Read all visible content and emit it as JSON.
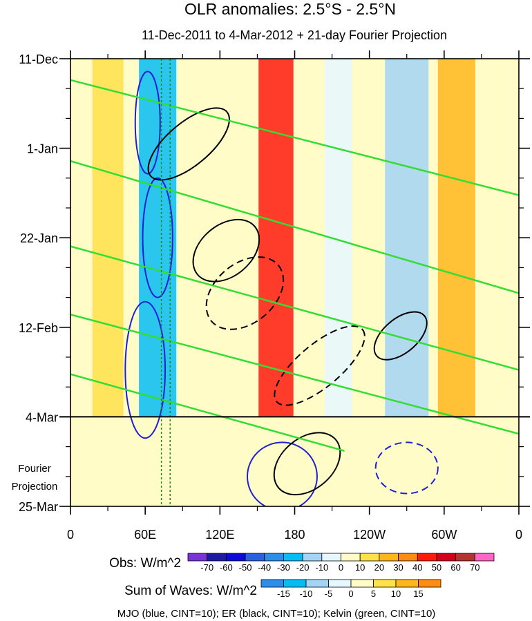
{
  "chart_data": {
    "type": "heatmap",
    "title": "OLR anomalies: 2.5°S - 2.5°N",
    "subtitle": "11-Dec-2011 to 4-Mar-2012 + 21-day Fourier Projection",
    "y_ticks": [
      "11-Dec",
      "1-Jan",
      "22-Jan",
      "12-Feb",
      "4-Mar",
      "25-Mar"
    ],
    "y_tick_days": [
      0,
      21,
      42,
      63,
      84,
      105
    ],
    "x_ticks": [
      "0",
      "60E",
      "120E",
      "180",
      "120W",
      "60W",
      "0"
    ],
    "x_tick_lons": [
      0,
      60,
      120,
      180,
      240,
      300,
      360
    ],
    "projection_label": [
      "Fourier",
      "Projection"
    ],
    "projection_start_day": 84,
    "reference_lines_lon": [
      73,
      80
    ],
    "obs_colorbar": {
      "label": "Obs: W/m^2",
      "levels": [
        "-70",
        "-60",
        "-50",
        "-40",
        "-30",
        "-20",
        "-10",
        "0",
        "10",
        "20",
        "30",
        "40",
        "50",
        "60",
        "70"
      ],
      "colors": [
        "#7a33d9",
        "#1d1aa6",
        "#0a0ad9",
        "#2b60e0",
        "#2e8de8",
        "#05bcf5",
        "#a3d3f5",
        "#e6f7ff",
        "#fffcc8",
        "#ffe14a",
        "#ffb61c",
        "#ff8c12",
        "#ff1a0d",
        "#d3001a",
        "#b3332e",
        "#ff66c8"
      ]
    },
    "waves_colorbar": {
      "label": "Sum of Waves: W/m^2",
      "levels": [
        "-15",
        "-10",
        "-5",
        "0",
        "5",
        "10",
        "15"
      ],
      "colors": [
        "#2e8de8",
        "#05bcf5",
        "#a3d3f5",
        "#e6f7ff",
        "#fffcc8",
        "#ffe14a",
        "#ffb61c",
        "#ff8c12"
      ]
    },
    "caption": "MJO (blue, CINT=10); ER (black, CINT=10); Kelvin (green, CINT=10)",
    "anomaly_bands": [
      {
        "lon": 165,
        "width": 28,
        "value": 45
      },
      {
        "lon": 215,
        "width": 22,
        "value": -8
      },
      {
        "lon": 70,
        "width": 30,
        "value": -30
      },
      {
        "lon": 30,
        "width": 25,
        "value": 15
      },
      {
        "lon": 310,
        "width": 30,
        "value": 25
      },
      {
        "lon": 270,
        "width": 35,
        "value": -20
      }
    ],
    "mjo_contours": [
      {
        "lon": 62,
        "day": 15,
        "rx": 10,
        "ry": 12,
        "sign": "negative"
      },
      {
        "lon": 70,
        "day": 42,
        "rx": 12,
        "ry": 14,
        "sign": "negative"
      },
      {
        "lon": 60,
        "day": 73,
        "rx": 16,
        "ry": 16,
        "sign": "negative"
      },
      {
        "lon": 170,
        "day": 98,
        "rx": 28,
        "ry": 8,
        "sign": "negative"
      },
      {
        "lon": 270,
        "day": 96,
        "rx": 25,
        "ry": 6,
        "sign": "positive"
      }
    ],
    "er_contours": [
      {
        "lon": 95,
        "day": 20,
        "rx": 40,
        "ry": 5,
        "sign": "negative"
      },
      {
        "lon": 125,
        "day": 45,
        "rx": 30,
        "ry": 6,
        "sign": "negative"
      },
      {
        "lon": 140,
        "day": 55,
        "rx": 35,
        "ry": 7,
        "sign": "positive"
      },
      {
        "lon": 200,
        "day": 72,
        "rx": 45,
        "ry": 5,
        "sign": "positive"
      },
      {
        "lon": 265,
        "day": 65,
        "rx": 25,
        "ry": 4,
        "sign": "negative"
      },
      {
        "lon": 190,
        "day": 95,
        "rx": 30,
        "ry": 6,
        "sign": "negative"
      }
    ],
    "kelvin_lines": [
      {
        "lon0": 0,
        "day0": 5,
        "lon1": 360,
        "day1": 32
      },
      {
        "lon0": 0,
        "day0": 24,
        "lon1": 360,
        "day1": 55
      },
      {
        "lon0": 0,
        "day0": 44,
        "lon1": 360,
        "day1": 73
      },
      {
        "lon0": 0,
        "day0": 60,
        "lon1": 360,
        "day1": 88
      },
      {
        "lon0": 0,
        "day0": 74,
        "lon1": 220,
        "day1": 92
      }
    ]
  }
}
